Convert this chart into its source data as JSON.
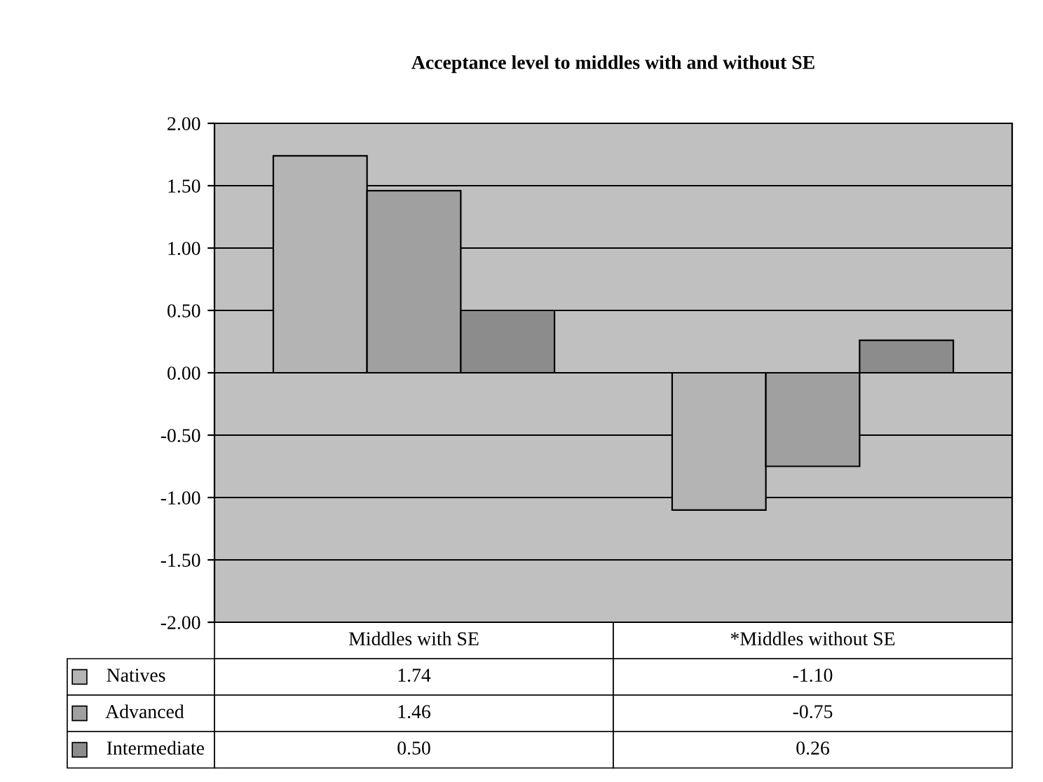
{
  "chart_data": {
    "type": "bar",
    "title": "Acceptance level to middles with and without SE",
    "categories": [
      "Middles with SE",
      "*Middles without SE"
    ],
    "series": [
      {
        "name": "Natives",
        "color": "#b4b4b4",
        "values": [
          1.74,
          -1.1
        ],
        "value_labels": [
          "1.74",
          "-1.10"
        ]
      },
      {
        "name": "Advanced",
        "color": "#a0a0a0",
        "values": [
          1.46,
          -0.75
        ],
        "value_labels": [
          "1.46",
          "-0.75"
        ]
      },
      {
        "name": "Intermediate",
        "color": "#8c8c8c",
        "values": [
          0.5,
          0.26
        ],
        "value_labels": [
          "0.50",
          "0.26"
        ]
      }
    ],
    "ylim": [
      -2,
      2
    ],
    "yticks": [
      {
        "value": -2,
        "label": "-2.00"
      },
      {
        "value": -1.5,
        "label": "-1.50"
      },
      {
        "value": -1,
        "label": "-1.00"
      },
      {
        "value": -0.5,
        "label": "-0.50"
      },
      {
        "value": 0,
        "label": "0.00"
      },
      {
        "value": 0.5,
        "label": "0.50"
      },
      {
        "value": 1,
        "label": "1.00"
      },
      {
        "value": 1.5,
        "label": "1.50"
      },
      {
        "value": 2,
        "label": "2.00"
      }
    ],
    "grid": "y",
    "legend": "bottom"
  }
}
